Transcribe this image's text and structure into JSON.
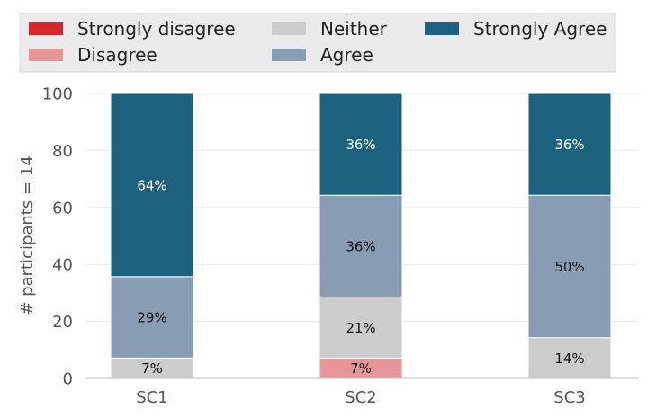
{
  "chart_data": {
    "type": "bar",
    "stacked": true,
    "categories": [
      "SC1",
      "SC2",
      "SC3"
    ],
    "series": [
      {
        "name": "Strongly disagree",
        "color": "#d62728",
        "values": [
          0,
          0,
          0
        ],
        "labels": [
          "",
          "",
          ""
        ]
      },
      {
        "name": "Disagree",
        "color": "#e8959a",
        "values": [
          0,
          7.14,
          0
        ],
        "labels": [
          "",
          "7%",
          ""
        ]
      },
      {
        "name": "Neither",
        "color": "#cccccc",
        "values": [
          7.14,
          21.43,
          14.29
        ],
        "labels": [
          "7%",
          "21%",
          "14%"
        ]
      },
      {
        "name": "Agree",
        "color": "#889db3",
        "values": [
          28.57,
          35.71,
          50.0
        ],
        "labels": [
          "29%",
          "36%",
          "50%"
        ]
      },
      {
        "name": "Strongly Agree",
        "color": "#1c627e",
        "values": [
          64.29,
          35.71,
          35.71
        ],
        "labels": [
          "64%",
          "36%",
          "36%"
        ]
      }
    ],
    "ylabel": "# participants = 14",
    "xlabel": "",
    "ylim": [
      0,
      100
    ],
    "yticks": [
      0,
      20,
      40,
      60,
      80,
      100
    ],
    "grid": true,
    "legend_position": "top",
    "legend_columns": 3
  }
}
